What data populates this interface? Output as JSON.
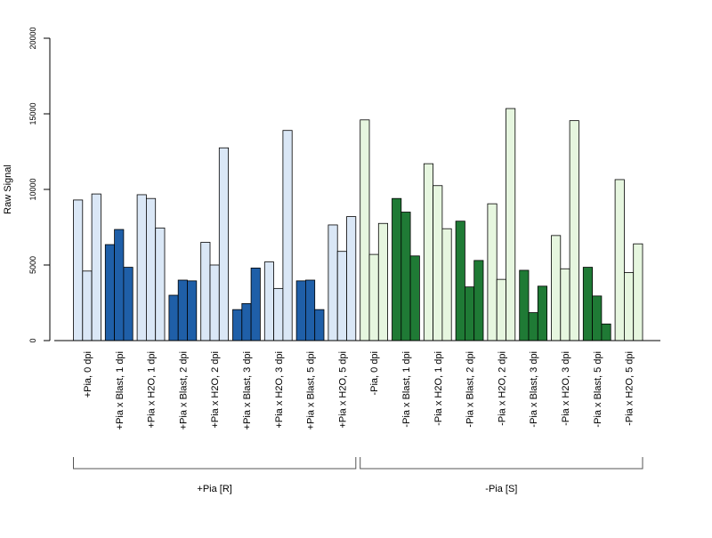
{
  "chart_data": {
    "type": "bar",
    "ylabel": "Raw Signal",
    "xlabel": "",
    "ylim": [
      0,
      20000
    ],
    "yticks": [
      0,
      5000,
      10000,
      15000,
      20000
    ],
    "grid": false,
    "legend": "none",
    "categories": [
      "+Pia, 0 dpi",
      "+Pia x Blast, 1 dpi",
      "+Pia x H2O, 1 dpi",
      "+Pia x Blast, 2 dpi",
      "+Pia x H2O, 2 dpi",
      "+Pia x Blast, 3 dpi",
      "+Pia x H2O, 3 dpi",
      "+Pia x Blast, 5 dpi",
      "+Pia x H2O, 5 dpi",
      "-Pia, 0 dpi",
      "-Pia x Blast, 1 dpi",
      "-Pia x H2O, 1 dpi",
      "-Pia x Blast, 2 dpi",
      "-Pia x H2O, 2 dpi",
      "-Pia x Blast, 3 dpi",
      "-Pia x H2O, 3 dpi",
      "-Pia x Blast, 5 dpi",
      "-Pia x H2O, 5 dpi"
    ],
    "values": [
      [
        9300,
        4600,
        9700
      ],
      [
        6350,
        7350,
        4850
      ],
      [
        9650,
        9400,
        7450
      ],
      [
        3000,
        4000,
        3950
      ],
      [
        6500,
        5000,
        12750
      ],
      [
        2050,
        2450,
        4800
      ],
      [
        5200,
        3450,
        13900
      ],
      [
        3950,
        4000,
        2050
      ],
      [
        7650,
        5900,
        8200
      ],
      [
        14600,
        5700,
        7750
      ],
      [
        9400,
        8500,
        5600
      ],
      [
        11700,
        10250,
        7400
      ],
      [
        7900,
        3550,
        5300
      ],
      [
        9050,
        4050,
        15350
      ],
      [
        4650,
        1850,
        3600
      ],
      [
        6950,
        4750,
        14550
      ],
      [
        4850,
        2950,
        1100
      ],
      [
        10650,
        4500,
        6400
      ]
    ],
    "bar_colors": [
      "#dae7f6",
      "#1f5fa8",
      "#dae7f6",
      "#1f5fa8",
      "#dae7f6",
      "#1f5fa8",
      "#dae7f6",
      "#1f5fa8",
      "#dae7f6",
      "#e6f6df",
      "#1f7a35",
      "#e6f6df",
      "#1f7a35",
      "#e6f6df",
      "#1f7a35",
      "#e6f6df",
      "#1f7a35",
      "#e6f6df"
    ],
    "groups": [
      {
        "label": "+Pia [R]",
        "start": 0,
        "end": 8
      },
      {
        "label": "-Pia [S]",
        "start": 9,
        "end": 17
      }
    ]
  }
}
